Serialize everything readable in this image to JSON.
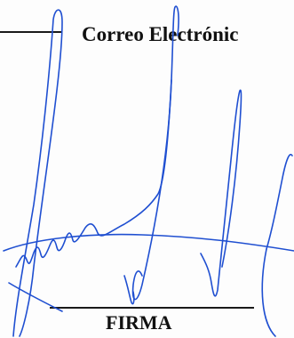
{
  "form": {
    "email_label": "Correo Electrónic",
    "signature_label": "FIRMA"
  },
  "signature": {
    "ink_color": "#1f4fd1"
  }
}
